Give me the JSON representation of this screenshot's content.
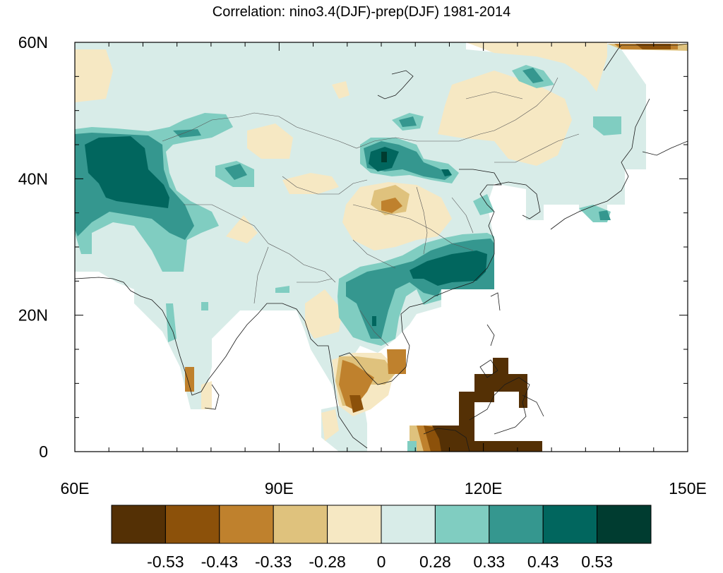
{
  "title": "Correlation: nino3.4(DJF)-prep(DJF) 1981-2014",
  "map": {
    "lon_range": [
      60,
      150
    ],
    "lat_range": [
      0,
      60
    ],
    "lon_ticks": [
      {
        "value": 60,
        "label": "60E"
      },
      {
        "value": 90,
        "label": "90E"
      },
      {
        "value": 120,
        "label": "120E"
      },
      {
        "value": 150,
        "label": "150E"
      }
    ],
    "lat_ticks": [
      {
        "value": 0,
        "label": "0"
      },
      {
        "value": 20,
        "label": "20N"
      },
      {
        "value": 40,
        "label": "40N"
      },
      {
        "value": 60,
        "label": "60N"
      }
    ]
  },
  "colorbar": {
    "colors": [
      "#543005",
      "#8c510a",
      "#bf812d",
      "#dfc27d",
      "#f6e8c3",
      "#d8ece8",
      "#80cdc1",
      "#35978f",
      "#01665e",
      "#003c30"
    ],
    "labels": [
      "-0.53",
      "-0.43",
      "-0.33",
      "-0.28",
      "0",
      "0.28",
      "0.33",
      "0.43",
      "0.53"
    ]
  },
  "legend_colors": {
    "strong_positive": "#01665e",
    "positive": "#35978f",
    "weak_positive": "#80cdc1",
    "near_zero_positive": "#d8ece8",
    "near_zero_negative": "#f6e8c3",
    "weak_negative": "#dfc27d",
    "negative": "#bf812d",
    "strong_negative": "#543005"
  }
}
